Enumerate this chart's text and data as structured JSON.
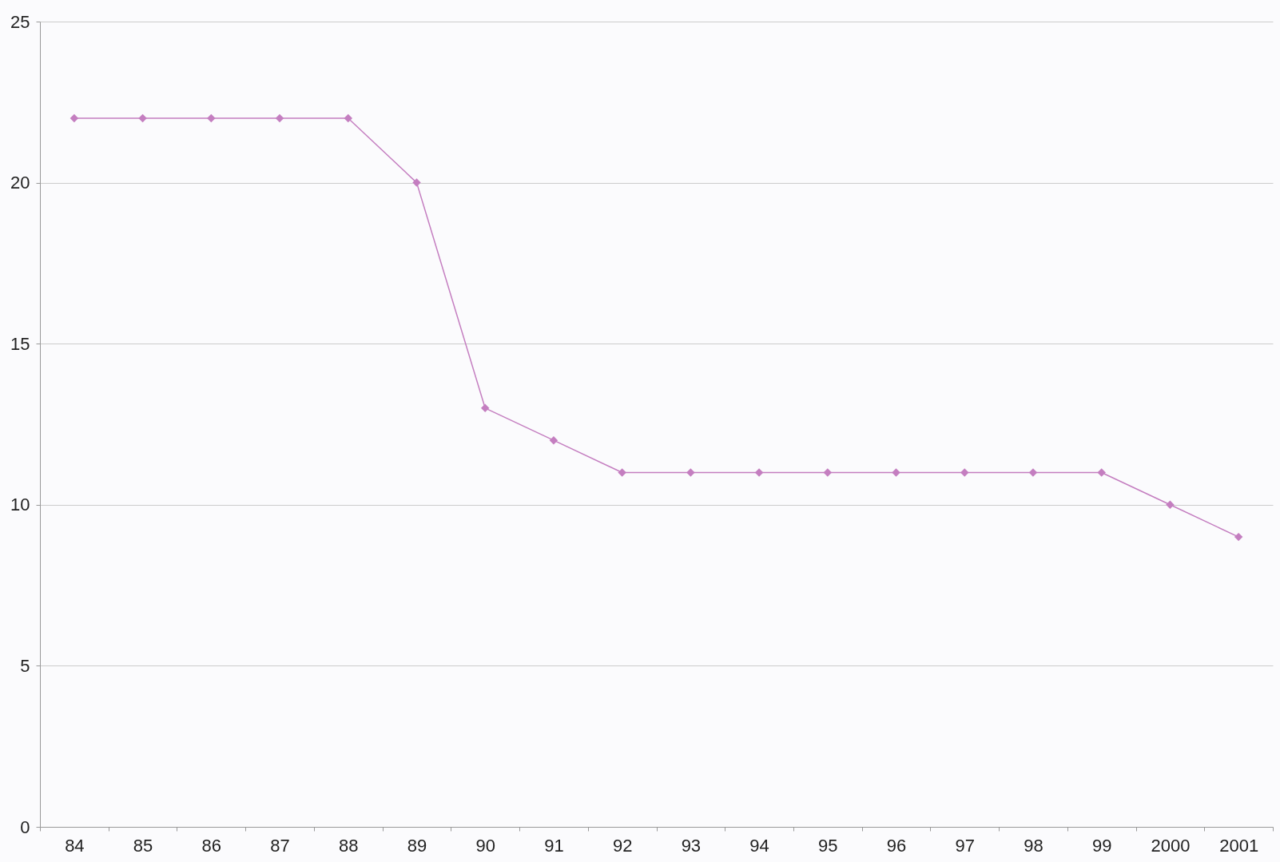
{
  "chart_data": {
    "type": "line",
    "categories": [
      "84",
      "85",
      "86",
      "87",
      "88",
      "89",
      "90",
      "91",
      "92",
      "93",
      "94",
      "95",
      "96",
      "97",
      "98",
      "99",
      "2000",
      "2001"
    ],
    "series": [
      {
        "color": "#c47ec0",
        "values": [
          22,
          22,
          22,
          22,
          22,
          20,
          13,
          12,
          11,
          11,
          11,
          11,
          11,
          11,
          11,
          11,
          10,
          9
        ]
      }
    ],
    "ylim": [
      0,
      25
    ],
    "yticks": [
      0,
      5,
      10,
      15,
      20,
      25
    ],
    "grid": "y",
    "marker": "diamond",
    "line_style": "solid",
    "legend": false
  }
}
